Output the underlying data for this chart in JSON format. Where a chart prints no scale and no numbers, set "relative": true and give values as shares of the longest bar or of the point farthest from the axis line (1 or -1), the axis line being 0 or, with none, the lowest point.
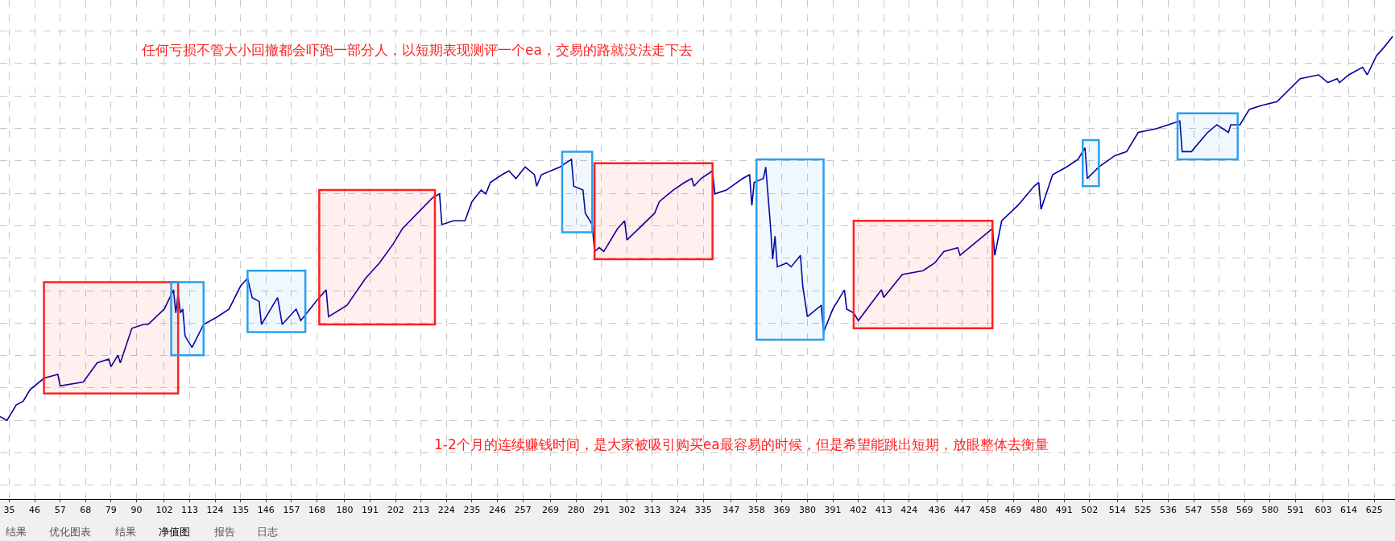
{
  "chart_data": {
    "type": "line",
    "relative": true,
    "color": "#0000a0",
    "grid": true,
    "legend": false,
    "marker": "none",
    "x": [
      31,
      34,
      38,
      41,
      44,
      50,
      56,
      57,
      67,
      73,
      78,
      79,
      82,
      83,
      88,
      93,
      95,
      102,
      106,
      107,
      108,
      109,
      110,
      111,
      114,
      119,
      125,
      130,
      135,
      138,
      140,
      143,
      144,
      151,
      153,
      159,
      161,
      169,
      172,
      173,
      181,
      189,
      195,
      201,
      205,
      218,
      221,
      222,
      227,
      232,
      235,
      239,
      241,
      243,
      248,
      251,
      254,
      258,
      262,
      263,
      265,
      273,
      278,
      279,
      283,
      284,
      287,
      288,
      290,
      292,
      298,
      301,
      302,
      314,
      316,
      322,
      327,
      330,
      331,
      334,
      339,
      340,
      345,
      352,
      355,
      356,
      357,
      361,
      362,
      364,
      365,
      366,
      367,
      371,
      373,
      377,
      378,
      380,
      386,
      387,
      391,
      396,
      397,
      400,
      402,
      412,
      413,
      421,
      430,
      435,
      439,
      445,
      446,
      454,
      460,
      461,
      464,
      471,
      478,
      480,
      481,
      486,
      492,
      497,
      500,
      501,
      506,
      513,
      518,
      523,
      531,
      536,
      541,
      542,
      546,
      553,
      557,
      562,
      563,
      567,
      571,
      576,
      583,
      593,
      601,
      605,
      609,
      610,
      614,
      620,
      622,
      626,
      629,
      633
    ],
    "values": [
      0.01,
      0,
      0.04,
      0.05,
      0.08,
      0.11,
      0.12,
      0.09,
      0.1,
      0.15,
      0.16,
      0.14,
      0.17,
      0.15,
      0.24,
      0.25,
      0.25,
      0.29,
      0.34,
      0.28,
      0.33,
      0.28,
      0.29,
      0.22,
      0.19,
      0.25,
      0.27,
      0.29,
      0.35,
      0.37,
      0.32,
      0.31,
      0.25,
      0.32,
      0.25,
      0.29,
      0.26,
      0.32,
      0.34,
      0.27,
      0.3,
      0.37,
      0.41,
      0.46,
      0.5,
      0.58,
      0.59,
      0.51,
      0.52,
      0.52,
      0.57,
      0.6,
      0.59,
      0.62,
      0.64,
      0.65,
      0.63,
      0.66,
      0.64,
      0.61,
      0.64,
      0.66,
      0.68,
      0.61,
      0.6,
      0.54,
      0.51,
      0.44,
      0.45,
      0.44,
      0.5,
      0.52,
      0.47,
      0.54,
      0.57,
      0.6,
      0.62,
      0.63,
      0.61,
      0.63,
      0.65,
      0.59,
      0.6,
      0.63,
      0.64,
      0.56,
      0.62,
      0.63,
      0.66,
      0.51,
      0.42,
      0.48,
      0.4,
      0.41,
      0.4,
      0.43,
      0.35,
      0.27,
      0.3,
      0.23,
      0.29,
      0.34,
      0.29,
      0.28,
      0.26,
      0.34,
      0.32,
      0.38,
      0.39,
      0.41,
      0.44,
      0.45,
      0.43,
      0.47,
      0.5,
      0.43,
      0.52,
      0.56,
      0.61,
      0.62,
      0.55,
      0.64,
      0.66,
      0.68,
      0.71,
      0.63,
      0.66,
      0.69,
      0.7,
      0.75,
      0.76,
      0.77,
      0.78,
      0.7,
      0.7,
      0.75,
      0.77,
      0.75,
      0.77,
      0.77,
      0.81,
      0.82,
      0.83,
      0.89,
      0.9,
      0.88,
      0.89,
      0.88,
      0.9,
      0.92,
      0.9,
      0.95,
      0.97,
      1.0
    ],
    "xlim": [
      31,
      634
    ],
    "xticks": [
      35,
      46,
      57,
      68,
      79,
      90,
      102,
      113,
      124,
      135,
      146,
      157,
      168,
      180,
      191,
      202,
      213,
      224,
      235,
      246,
      257,
      269,
      280,
      291,
      302,
      313,
      324,
      335,
      347,
      358,
      369,
      380,
      391,
      402,
      413,
      424,
      436,
      447,
      458,
      469,
      480,
      491,
      502,
      514,
      525,
      536,
      547,
      558,
      569,
      580,
      591,
      603,
      614,
      625
    ],
    "bands": [
      {
        "axis": "x",
        "from": 50,
        "to": 108,
        "color": "#ff2020"
      },
      {
        "axis": "x",
        "from": 105,
        "to": 119,
        "color": "#2aa0f0"
      },
      {
        "axis": "x",
        "from": 138,
        "to": 163,
        "color": "#2aa0f0"
      },
      {
        "axis": "x",
        "from": 169,
        "to": 219,
        "color": "#ff2020"
      },
      {
        "axis": "x",
        "from": 274,
        "to": 287,
        "color": "#2aa0f0"
      },
      {
        "axis": "x",
        "from": 288,
        "to": 339,
        "color": "#ff2020"
      },
      {
        "axis": "x",
        "from": 358,
        "to": 387,
        "color": "#2aa0f0"
      },
      {
        "axis": "x",
        "from": 400,
        "to": 460,
        "color": "#ff2020"
      },
      {
        "axis": "x",
        "from": 499,
        "to": 506,
        "color": "#2aa0f0"
      },
      {
        "axis": "x",
        "from": 540,
        "to": 566,
        "color": "#2aa0f0"
      }
    ],
    "annotations": [
      "任何亏损不管大小回撤都会吓跑一部分人，以短期表现测评一个ea，交易的路就没法走下去",
      "1-2个月的连续赚钱时间，是大家被吸引购买ea最容易的时候，但是希望能跳出短期，放眼整体去衡量",
      "结果",
      "优化图表",
      "结果",
      "净值图",
      "报告",
      "日志"
    ]
  }
}
